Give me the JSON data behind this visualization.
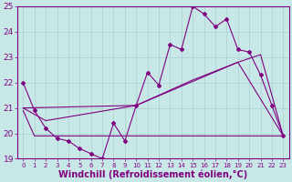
{
  "background_color": "#c8e8e8",
  "grid_color": "#a8d0d0",
  "line_color": "#800080",
  "xlabel": "Windchill (Refroidissement éolien,°C)",
  "xlim": [
    -0.5,
    23.5
  ],
  "ylim": [
    19,
    25
  ],
  "yticks": [
    19,
    20,
    21,
    22,
    23,
    24,
    25
  ],
  "xticks": [
    0,
    1,
    2,
    3,
    4,
    5,
    6,
    7,
    8,
    9,
    10,
    11,
    12,
    13,
    14,
    15,
    16,
    17,
    18,
    19,
    20,
    21,
    22,
    23
  ],
  "series1_x": [
    0,
    1,
    2,
    3,
    4,
    5,
    6,
    7,
    8,
    9,
    10,
    11,
    12,
    13,
    14,
    15,
    16,
    17,
    18,
    19,
    20,
    21,
    22,
    23
  ],
  "series1_y": [
    22.0,
    20.9,
    20.2,
    19.8,
    19.7,
    19.4,
    19.2,
    19.0,
    20.4,
    19.7,
    21.1,
    22.4,
    21.9,
    23.5,
    23.3,
    25.0,
    24.7,
    24.2,
    24.5,
    23.3,
    23.2,
    22.3,
    21.1,
    19.9
  ],
  "series2_x": [
    0,
    2,
    10,
    15,
    19,
    21,
    23
  ],
  "series2_y": [
    21.0,
    20.5,
    21.1,
    22.1,
    22.8,
    23.1,
    19.9
  ],
  "series3_x": [
    0,
    10,
    19,
    23
  ],
  "series3_y": [
    21.0,
    21.1,
    22.8,
    19.9
  ],
  "series4_x": [
    0,
    1,
    9,
    19,
    23
  ],
  "series4_y": [
    20.9,
    19.9,
    19.9,
    19.9,
    19.9
  ],
  "font_size_xlabel": 7,
  "font_size_tick_x": 5.0,
  "font_size_tick_y": 6.5
}
